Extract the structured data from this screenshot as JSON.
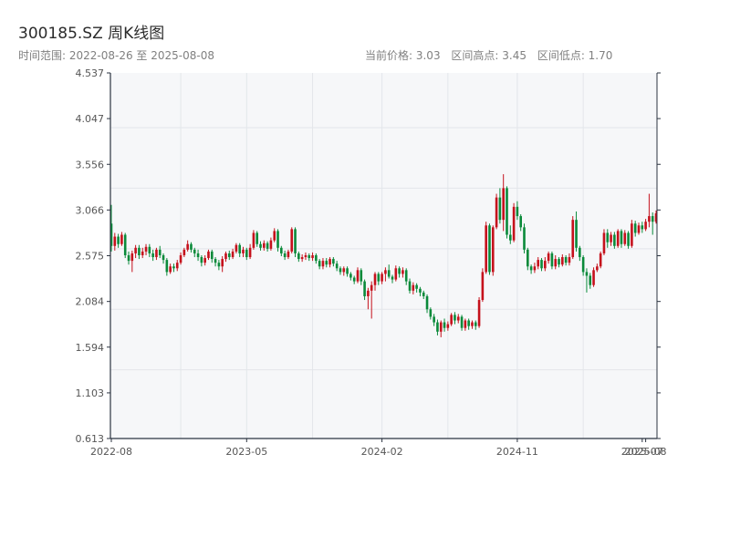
{
  "title": "300185.SZ 周K线图",
  "range_label": "时间范围: 2022-08-26 至 2025-08-08",
  "stats": {
    "current": "当前价格: 3.03",
    "high": "区间高点: 3.45",
    "low": "区间低点: 1.70"
  },
  "colors": {
    "up": "#c5111c",
    "down": "#0a8a3a",
    "plot_bg": "#f6f7f9",
    "grid": "#e3e6ea",
    "axis": "#2b3340"
  },
  "chart_data": {
    "type": "candlestick",
    "title": "300185.SZ 周K线图",
    "y_ticks": [
      "4.537",
      "4.047",
      "3.556",
      "3.066",
      "2.575",
      "2.084",
      "1.594",
      "1.103",
      "0.613"
    ],
    "ylim": [
      0.613,
      4.537
    ],
    "x_ticks": [
      {
        "label": "2022-08",
        "week": 0
      },
      {
        "label": "2023-05",
        "week": 39
      },
      {
        "label": "2024-02",
        "week": 78
      },
      {
        "label": "2024-11",
        "week": 117
      },
      {
        "label": "2025-07",
        "week": 153
      },
      {
        "label": "2025-08",
        "week": 154
      }
    ],
    "grid": true,
    "series": [
      [
        0,
        2.92,
        2.68,
        3.12,
        2.62
      ],
      [
        1,
        2.68,
        2.78,
        2.82,
        2.63
      ],
      [
        2,
        2.78,
        2.7,
        2.81,
        2.66
      ],
      [
        3,
        2.7,
        2.8,
        2.83,
        2.68
      ],
      [
        4,
        2.8,
        2.58,
        2.82,
        2.55
      ],
      [
        5,
        2.58,
        2.52,
        2.62,
        2.48
      ],
      [
        6,
        2.52,
        2.6,
        2.63,
        2.4
      ],
      [
        7,
        2.6,
        2.66,
        2.69,
        2.55
      ],
      [
        8,
        2.66,
        2.58,
        2.69,
        2.54
      ],
      [
        9,
        2.58,
        2.62,
        2.66,
        2.55
      ],
      [
        10,
        2.62,
        2.67,
        2.7,
        2.58
      ],
      [
        11,
        2.67,
        2.6,
        2.7,
        2.56
      ],
      [
        12,
        2.6,
        2.56,
        2.64,
        2.52
      ],
      [
        13,
        2.56,
        2.64,
        2.66,
        2.53
      ],
      [
        14,
        2.64,
        2.58,
        2.68,
        2.55
      ],
      [
        15,
        2.58,
        2.53,
        2.6,
        2.49
      ],
      [
        16,
        2.53,
        2.4,
        2.55,
        2.36
      ],
      [
        17,
        2.4,
        2.46,
        2.49,
        2.38
      ],
      [
        18,
        2.46,
        2.44,
        2.49,
        2.4
      ],
      [
        19,
        2.44,
        2.5,
        2.53,
        2.41
      ],
      [
        20,
        2.5,
        2.58,
        2.61,
        2.48
      ],
      [
        21,
        2.58,
        2.64,
        2.66,
        2.56
      ],
      [
        22,
        2.64,
        2.7,
        2.74,
        2.62
      ],
      [
        23,
        2.7,
        2.64,
        2.72,
        2.61
      ],
      [
        24,
        2.64,
        2.6,
        2.66,
        2.56
      ],
      [
        25,
        2.6,
        2.56,
        2.64,
        2.52
      ],
      [
        26,
        2.56,
        2.5,
        2.58,
        2.46
      ],
      [
        27,
        2.5,
        2.55,
        2.58,
        2.47
      ],
      [
        28,
        2.55,
        2.62,
        2.64,
        2.53
      ],
      [
        29,
        2.62,
        2.54,
        2.64,
        2.5
      ],
      [
        30,
        2.54,
        2.5,
        2.56,
        2.46
      ],
      [
        31,
        2.5,
        2.46,
        2.53,
        2.42
      ],
      [
        32,
        2.46,
        2.54,
        2.57,
        2.4
      ],
      [
        33,
        2.54,
        2.6,
        2.62,
        2.51
      ],
      [
        34,
        2.6,
        2.56,
        2.63,
        2.53
      ],
      [
        35,
        2.56,
        2.62,
        2.65,
        2.54
      ],
      [
        36,
        2.62,
        2.69,
        2.71,
        2.6
      ],
      [
        37,
        2.69,
        2.6,
        2.71,
        2.56
      ],
      [
        38,
        2.6,
        2.64,
        2.67,
        2.56
      ],
      [
        39,
        2.64,
        2.56,
        2.66,
        2.53
      ],
      [
        40,
        2.56,
        2.66,
        2.7,
        2.54
      ],
      [
        41,
        2.66,
        2.82,
        2.85,
        2.64
      ],
      [
        42,
        2.82,
        2.7,
        2.84,
        2.67
      ],
      [
        43,
        2.7,
        2.66,
        2.73,
        2.63
      ],
      [
        44,
        2.66,
        2.71,
        2.74,
        2.63
      ],
      [
        45,
        2.71,
        2.65,
        2.73,
        2.62
      ],
      [
        46,
        2.65,
        2.74,
        2.77,
        2.63
      ],
      [
        47,
        2.74,
        2.84,
        2.87,
        2.72
      ],
      [
        48,
        2.84,
        2.66,
        2.86,
        2.62
      ],
      [
        49,
        2.66,
        2.6,
        2.68,
        2.57
      ],
      [
        50,
        2.6,
        2.56,
        2.63,
        2.53
      ],
      [
        51,
        2.56,
        2.62,
        2.64,
        2.54
      ],
      [
        52,
        2.62,
        2.86,
        2.88,
        2.6
      ],
      [
        53,
        2.86,
        2.6,
        2.88,
        2.56
      ],
      [
        54,
        2.6,
        2.54,
        2.62,
        2.51
      ],
      [
        55,
        2.54,
        2.56,
        2.59,
        2.51
      ],
      [
        56,
        2.56,
        2.58,
        2.61,
        2.53
      ],
      [
        57,
        2.58,
        2.55,
        2.6,
        2.52
      ],
      [
        58,
        2.55,
        2.58,
        2.61,
        2.52
      ],
      [
        59,
        2.58,
        2.52,
        2.6,
        2.49
      ],
      [
        60,
        2.52,
        2.46,
        2.54,
        2.43
      ],
      [
        61,
        2.46,
        2.52,
        2.55,
        2.43
      ],
      [
        62,
        2.52,
        2.48,
        2.55,
        2.45
      ],
      [
        63,
        2.48,
        2.54,
        2.56,
        2.45
      ],
      [
        64,
        2.54,
        2.49,
        2.56,
        2.46
      ],
      [
        65,
        2.49,
        2.44,
        2.52,
        2.41
      ],
      [
        66,
        2.44,
        2.4,
        2.46,
        2.37
      ],
      [
        67,
        2.4,
        2.44,
        2.46,
        2.36
      ],
      [
        68,
        2.44,
        2.38,
        2.46,
        2.35
      ],
      [
        69,
        2.38,
        2.34,
        2.4,
        2.31
      ],
      [
        70,
        2.34,
        2.3,
        2.36,
        2.27
      ],
      [
        71,
        2.3,
        2.42,
        2.45,
        2.28
      ],
      [
        72,
        2.42,
        2.3,
        2.44,
        2.26
      ],
      [
        73,
        2.3,
        2.14,
        2.32,
        2.1
      ],
      [
        74,
        2.14,
        2.2,
        2.23,
        2.0
      ],
      [
        75,
        2.2,
        2.26,
        2.3,
        1.9
      ],
      [
        76,
        2.26,
        2.38,
        2.4,
        2.2
      ],
      [
        77,
        2.38,
        2.3,
        2.4,
        2.26
      ],
      [
        78,
        2.3,
        2.38,
        2.4,
        2.27
      ],
      [
        79,
        2.38,
        2.42,
        2.45,
        2.3
      ],
      [
        80,
        2.42,
        2.35,
        2.48,
        2.33
      ],
      [
        81,
        2.35,
        2.32,
        2.37,
        2.28
      ],
      [
        82,
        2.32,
        2.44,
        2.47,
        2.3
      ],
      [
        83,
        2.44,
        2.38,
        2.46,
        2.34
      ],
      [
        84,
        2.38,
        2.42,
        2.45,
        2.34
      ],
      [
        85,
        2.42,
        2.3,
        2.44,
        2.26
      ],
      [
        86,
        2.3,
        2.2,
        2.33,
        2.17
      ],
      [
        87,
        2.2,
        2.26,
        2.29,
        2.16
      ],
      [
        88,
        2.26,
        2.22,
        2.28,
        2.18
      ],
      [
        89,
        2.22,
        2.18,
        2.24,
        2.14
      ],
      [
        90,
        2.18,
        2.14,
        2.2,
        2.11
      ],
      [
        91,
        2.14,
        2.0,
        2.16,
        1.96
      ],
      [
        92,
        2.0,
        1.92,
        2.02,
        1.89
      ],
      [
        93,
        1.92,
        1.86,
        1.95,
        1.82
      ],
      [
        94,
        1.86,
        1.76,
        1.89,
        1.72
      ],
      [
        95,
        1.76,
        1.86,
        1.88,
        1.7
      ],
      [
        96,
        1.86,
        1.8,
        1.9,
        1.76
      ],
      [
        97,
        1.8,
        1.84,
        1.87,
        1.77
      ],
      [
        98,
        1.84,
        1.94,
        1.96,
        1.82
      ],
      [
        99,
        1.94,
        1.88,
        1.97,
        1.84
      ],
      [
        100,
        1.88,
        1.92,
        1.95,
        1.85
      ],
      [
        101,
        1.92,
        1.8,
        1.94,
        1.77
      ],
      [
        102,
        1.8,
        1.88,
        1.9,
        1.77
      ],
      [
        103,
        1.88,
        1.82,
        1.9,
        1.78
      ],
      [
        104,
        1.82,
        1.86,
        1.88,
        1.79
      ],
      [
        105,
        1.86,
        1.82,
        1.88,
        1.78
      ],
      [
        106,
        1.82,
        2.1,
        2.13,
        1.8
      ],
      [
        107,
        2.1,
        2.4,
        2.44,
        2.08
      ],
      [
        108,
        2.4,
        2.9,
        2.94,
        2.38
      ],
      [
        109,
        2.9,
        2.4,
        2.92,
        2.37
      ],
      [
        110,
        2.4,
        2.88,
        2.9,
        2.36
      ],
      [
        111,
        2.88,
        3.2,
        3.24,
        2.86
      ],
      [
        112,
        3.2,
        2.96,
        3.3,
        2.92
      ],
      [
        113,
        2.96,
        3.3,
        3.45,
        2.84
      ],
      [
        114,
        3.3,
        2.8,
        3.32,
        2.76
      ],
      [
        115,
        2.8,
        2.74,
        2.9,
        2.7
      ],
      [
        116,
        2.74,
        3.1,
        3.14,
        2.72
      ],
      [
        117,
        3.1,
        3.0,
        3.16,
        2.96
      ],
      [
        118,
        3.0,
        2.88,
        3.02,
        2.84
      ],
      [
        119,
        2.88,
        2.64,
        2.92,
        2.6
      ],
      [
        120,
        2.64,
        2.46,
        2.66,
        2.42
      ],
      [
        121,
        2.46,
        2.42,
        2.48,
        2.38
      ],
      [
        122,
        2.42,
        2.46,
        2.5,
        2.39
      ],
      [
        123,
        2.46,
        2.53,
        2.56,
        2.43
      ],
      [
        124,
        2.53,
        2.44,
        2.55,
        2.41
      ],
      [
        125,
        2.44,
        2.52,
        2.56,
        2.41
      ],
      [
        126,
        2.52,
        2.6,
        2.62,
        2.49
      ],
      [
        127,
        2.6,
        2.46,
        2.62,
        2.43
      ],
      [
        128,
        2.46,
        2.54,
        2.58,
        2.43
      ],
      [
        129,
        2.54,
        2.48,
        2.56,
        2.45
      ],
      [
        130,
        2.48,
        2.56,
        2.59,
        2.46
      ],
      [
        131,
        2.56,
        2.5,
        2.58,
        2.47
      ],
      [
        132,
        2.5,
        2.56,
        2.6,
        2.47
      ],
      [
        133,
        2.56,
        2.96,
        3.0,
        2.54
      ],
      [
        134,
        2.96,
        2.66,
        3.05,
        2.62
      ],
      [
        135,
        2.66,
        2.56,
        2.68,
        2.52
      ],
      [
        136,
        2.56,
        2.4,
        2.58,
        2.36
      ],
      [
        137,
        2.4,
        2.36,
        2.44,
        2.18
      ],
      [
        138,
        2.36,
        2.26,
        2.39,
        2.22
      ],
      [
        139,
        2.26,
        2.42,
        2.45,
        2.24
      ],
      [
        140,
        2.42,
        2.46,
        2.49,
        2.4
      ],
      [
        141,
        2.46,
        2.6,
        2.62,
        2.44
      ],
      [
        142,
        2.6,
        2.82,
        2.86,
        2.58
      ],
      [
        143,
        2.82,
        2.72,
        2.86,
        2.66
      ],
      [
        144,
        2.72,
        2.8,
        2.83,
        2.68
      ],
      [
        145,
        2.8,
        2.68,
        2.83,
        2.65
      ],
      [
        146,
        2.68,
        2.84,
        2.86,
        2.66
      ],
      [
        147,
        2.84,
        2.7,
        2.86,
        2.66
      ],
      [
        148,
        2.7,
        2.82,
        2.85,
        2.68
      ],
      [
        149,
        2.82,
        2.68,
        2.84,
        2.65
      ],
      [
        150,
        2.68,
        2.92,
        2.96,
        2.66
      ],
      [
        151,
        2.92,
        2.82,
        2.95,
        2.78
      ],
      [
        152,
        2.82,
        2.9,
        2.93,
        2.8
      ],
      [
        153,
        2.9,
        2.86,
        2.94,
        2.82
      ],
      [
        154,
        2.86,
        2.94,
        2.97,
        2.84
      ],
      [
        155,
        2.94,
        3.0,
        3.24,
        2.88
      ],
      [
        156,
        3.0,
        2.94,
        3.04,
        2.8
      ],
      [
        157,
        2.94,
        3.03,
        3.06,
        2.92
      ]
    ],
    "series_fields": [
      "week",
      "open",
      "close",
      "high",
      "low"
    ]
  }
}
